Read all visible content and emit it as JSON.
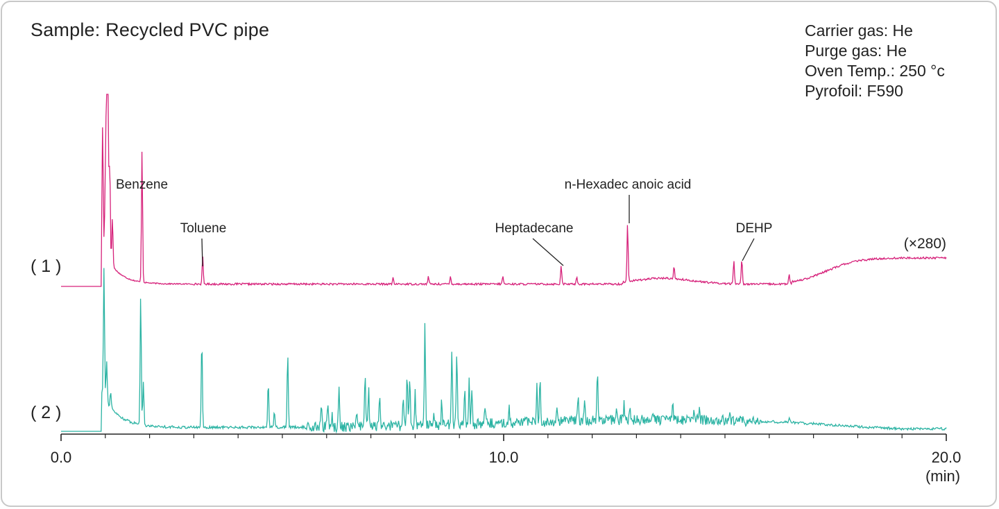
{
  "title": "Sample: Recycled PVC pipe",
  "conditions": [
    "Carrier gas: He",
    "Purge gas: He",
    "Oven Temp.: 250 °c",
    "Pyrofoil: F590"
  ],
  "chart_data": {
    "type": "line",
    "xlabel": "(min)",
    "xlim": [
      0,
      20
    ],
    "x_ticks": [
      {
        "value": 0,
        "label": "0.0"
      },
      {
        "value": 10,
        "label": "10.0"
      },
      {
        "value": 20,
        "label": "20.0"
      }
    ],
    "grid": false,
    "series": [
      {
        "name": "( 1 )",
        "scale_label": "(×280)",
        "color": "#d6217a",
        "baseline_start": 0.0,
        "offset_min": 0.92,
        "peaks": [
          {
            "t": 0.94,
            "h": 0.62
          },
          {
            "t": 1.0,
            "h": 0.38
          },
          {
            "t": 1.03,
            "h": 1.0
          },
          {
            "t": 1.06,
            "h": 1.0
          },
          {
            "t": 1.1,
            "h": 0.52
          },
          {
            "t": 1.16,
            "h": 0.25
          },
          {
            "t": 1.83,
            "h": 0.68
          },
          {
            "t": 3.2,
            "h": 0.14
          },
          {
            "t": 7.5,
            "h": 0.03
          },
          {
            "t": 8.3,
            "h": 0.04
          },
          {
            "t": 8.8,
            "h": 0.04
          },
          {
            "t": 9.98,
            "h": 0.04
          },
          {
            "t": 11.3,
            "h": 0.1
          },
          {
            "t": 11.65,
            "h": 0.04
          },
          {
            "t": 12.8,
            "h": 0.3
          },
          {
            "t": 13.85,
            "h": 0.06
          },
          {
            "t": 15.2,
            "h": 0.12
          },
          {
            "t": 15.38,
            "h": 0.13
          },
          {
            "t": 16.45,
            "h": 0.05
          }
        ]
      },
      {
        "name": "( 2 )",
        "color": "#2bb3a3",
        "baseline_start": 0.0,
        "offset_min": 0.92,
        "peaks": [
          {
            "t": 0.97,
            "h": 1.0
          },
          {
            "t": 1.03,
            "h": 0.32
          },
          {
            "t": 1.12,
            "h": 0.12
          },
          {
            "t": 1.8,
            "h": 1.0
          },
          {
            "t": 1.86,
            "h": 0.34
          },
          {
            "t": 3.18,
            "h": 0.68
          },
          {
            "t": 4.68,
            "h": 0.35
          },
          {
            "t": 4.82,
            "h": 0.12
          },
          {
            "t": 5.12,
            "h": 0.57
          },
          {
            "t": 5.88,
            "h": 0.14
          },
          {
            "t": 6.03,
            "h": 0.17
          },
          {
            "t": 6.12,
            "h": 0.09
          },
          {
            "t": 6.28,
            "h": 0.32
          },
          {
            "t": 6.68,
            "h": 0.12
          },
          {
            "t": 6.87,
            "h": 0.4
          },
          {
            "t": 6.95,
            "h": 0.28
          },
          {
            "t": 7.2,
            "h": 0.22
          },
          {
            "t": 7.73,
            "h": 0.23
          },
          {
            "t": 7.82,
            "h": 0.38
          },
          {
            "t": 7.88,
            "h": 0.39
          },
          {
            "t": 8.0,
            "h": 0.27
          },
          {
            "t": 8.22,
            "h": 0.78
          },
          {
            "t": 8.42,
            "h": 0.11
          },
          {
            "t": 8.6,
            "h": 0.18
          },
          {
            "t": 8.83,
            "h": 0.6
          },
          {
            "t": 8.94,
            "h": 0.57
          },
          {
            "t": 9.12,
            "h": 0.31
          },
          {
            "t": 9.22,
            "h": 0.35
          },
          {
            "t": 9.28,
            "h": 0.26
          },
          {
            "t": 9.58,
            "h": 0.14
          },
          {
            "t": 10.12,
            "h": 0.13
          },
          {
            "t": 10.75,
            "h": 0.3
          },
          {
            "t": 10.82,
            "h": 0.34
          },
          {
            "t": 11.2,
            "h": 0.12
          },
          {
            "t": 11.68,
            "h": 0.18
          },
          {
            "t": 11.83,
            "h": 0.16
          },
          {
            "t": 12.12,
            "h": 0.36
          },
          {
            "t": 12.55,
            "h": 0.1
          },
          {
            "t": 12.72,
            "h": 0.12
          },
          {
            "t": 12.85,
            "h": 0.12
          },
          {
            "t": 13.4,
            "h": 0.08
          },
          {
            "t": 13.82,
            "h": 0.13
          },
          {
            "t": 14.3,
            "h": 0.1
          },
          {
            "t": 14.42,
            "h": 0.09
          },
          {
            "t": 15.1,
            "h": 0.05
          },
          {
            "t": 16.45,
            "h": 0.04
          }
        ]
      }
    ],
    "annotations": [
      {
        "text": "Benzene",
        "series": "( 1 )",
        "t": 1.9
      },
      {
        "text": "Toluene",
        "series": "( 1 )",
        "t": 3.2
      },
      {
        "text": "Heptadecane",
        "series": "( 1 )",
        "t": 11.3
      },
      {
        "text": "n-Hexadec anoic acid",
        "series": "( 1 )",
        "t": 12.8
      },
      {
        "text": "DEHP",
        "series": "( 1 )",
        "t": 15.35
      }
    ]
  }
}
